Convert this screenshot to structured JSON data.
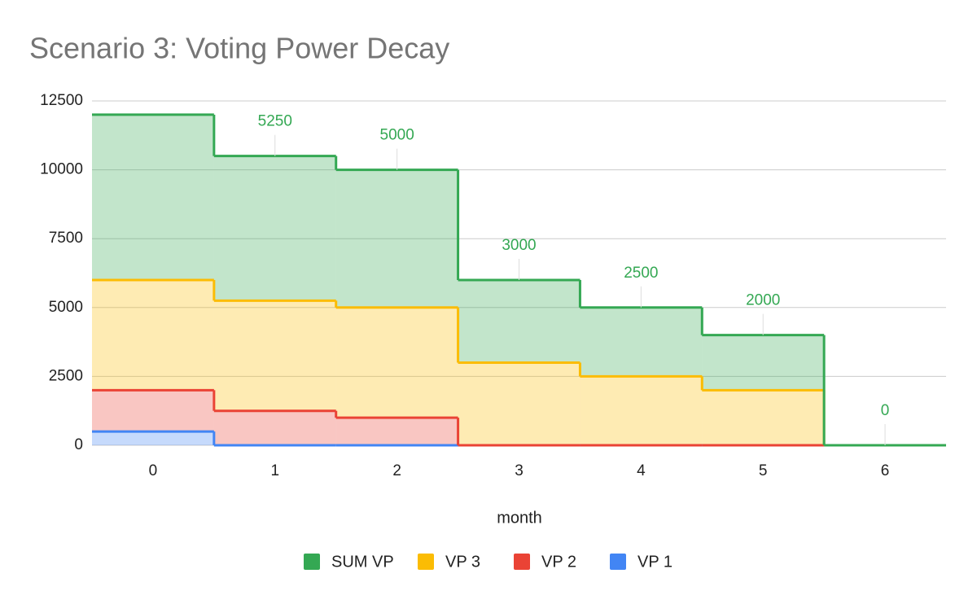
{
  "chart_data": {
    "type": "stepped-area",
    "stacked": true,
    "title": "Scenario 3: Voting Power Decay",
    "x_label": "month",
    "categories": [
      "0",
      "1",
      "2",
      "3",
      "4",
      "5",
      "6"
    ],
    "ylim": [
      0,
      12500
    ],
    "yticks": [
      0,
      2500,
      5000,
      7500,
      10000,
      12500
    ],
    "grid": true,
    "legend": "bottom",
    "series": [
      {
        "name": "VP 1",
        "color": "#4285f4",
        "values": [
          500,
          0,
          0,
          0,
          0,
          0,
          0
        ]
      },
      {
        "name": "VP 2",
        "color": "#ea4335",
        "values": [
          1500,
          1250,
          1000,
          0,
          0,
          0,
          0
        ]
      },
      {
        "name": "VP 3",
        "color": "#fbbc04",
        "values": [
          4000,
          4000,
          4000,
          3000,
          2500,
          2000,
          0
        ]
      },
      {
        "name": "SUM VP",
        "color": "#34a853",
        "values": [
          6000,
          5250,
          5000,
          3000,
          2500,
          2000,
          0
        ],
        "value_labels": [
          null,
          "5250",
          "5000",
          "3000",
          "2500",
          "2000",
          "0"
        ]
      }
    ]
  }
}
